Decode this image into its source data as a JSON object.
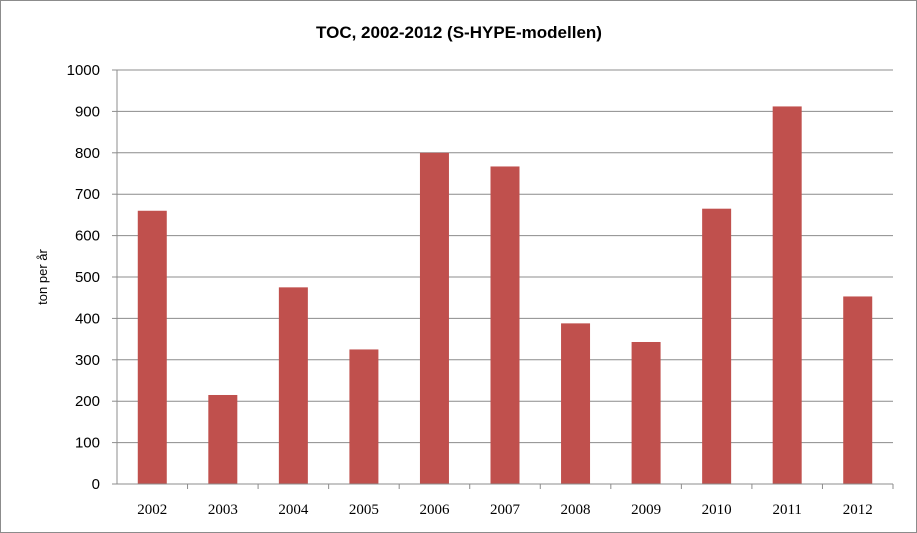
{
  "chart_data": {
    "type": "bar",
    "title": "TOC, 2002-2012 (S-HYPE-modellen)",
    "xlabel": "",
    "ylabel": "ton per år",
    "categories": [
      "2002",
      "2003",
      "2004",
      "2005",
      "2006",
      "2007",
      "2008",
      "2009",
      "2010",
      "2011",
      "2012"
    ],
    "series": [
      {
        "values": [
          660,
          215,
          475,
          325,
          800,
          767,
          388,
          343,
          665,
          912,
          453
        ],
        "color": "#c0504d"
      }
    ],
    "ylim": [
      0,
      1000
    ],
    "yticks": [
      0,
      100,
      200,
      300,
      400,
      500,
      600,
      700,
      800,
      900,
      1000
    ],
    "grid": true,
    "legend": "none"
  }
}
